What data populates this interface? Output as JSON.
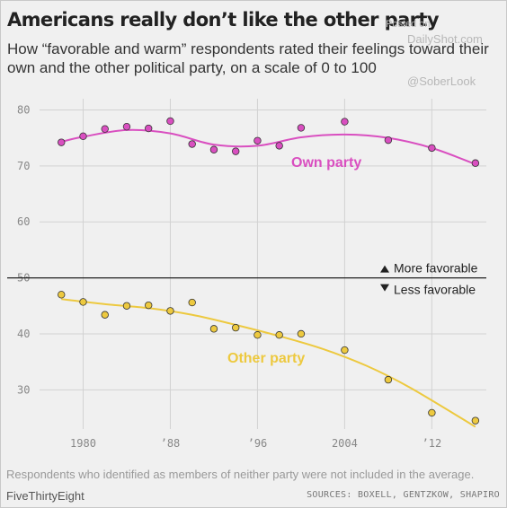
{
  "header": {
    "title": "Americans really don’t like the other party",
    "subtitle": "How “favorable and warm” respondents rated their feelings toward their own and the other political party, on a scale of 0 to 100"
  },
  "watermark": {
    "posted_on": "Posted on",
    "site": "DailyShot.com",
    "handle": "@SoberLook"
  },
  "footer": {
    "note": "Respondents who identified as members of neither party were not included in the average.",
    "brand": "FiveThirtyEight",
    "sources": "SOURCES: BOXELL, GENTZKOW, SHAPIRO"
  },
  "chart_data": {
    "type": "scatter",
    "xlim": [
      1976,
      2017
    ],
    "ylim": [
      23,
      82
    ],
    "x_ticks": [
      1980,
      1988,
      1996,
      2004,
      2012
    ],
    "x_tick_labels": [
      "1980",
      "’88",
      "’96",
      "2004",
      "’12"
    ],
    "y_ticks": [
      30,
      40,
      50,
      60,
      70,
      80
    ],
    "y_tick_labels": [
      "30",
      "40",
      "50",
      "60",
      "70",
      "80"
    ],
    "grid": true,
    "reference_line": {
      "y": 50,
      "above_label": "More favorable",
      "below_label": "Less favorable"
    },
    "series": [
      {
        "name": "Own party",
        "color": "#d94fc0",
        "x": [
          1978,
          1980,
          1982,
          1984,
          1986,
          1988,
          1990,
          1992,
          1994,
          1996,
          1998,
          2000,
          2004,
          2008,
          2012,
          2016
        ],
        "y": [
          74.2,
          75.3,
          76.6,
          77.0,
          76.7,
          78.0,
          73.9,
          72.9,
          72.6,
          74.5,
          73.6,
          76.8,
          77.9,
          74.6,
          73.2,
          70.5
        ],
        "trend": [
          [
            1978,
            74.3
          ],
          [
            1980,
            75.2
          ],
          [
            1984,
            76.4
          ],
          [
            1988,
            75.8
          ],
          [
            1992,
            73.8
          ],
          [
            1996,
            73.6
          ],
          [
            2000,
            75.1
          ],
          [
            2004,
            75.6
          ],
          [
            2008,
            75.0
          ],
          [
            2012,
            73.2
          ],
          [
            2016,
            70.3
          ]
        ]
      },
      {
        "name": "Other party",
        "color": "#edc93f",
        "x": [
          1978,
          1980,
          1982,
          1984,
          1986,
          1988,
          1990,
          1992,
          1994,
          1996,
          1998,
          2000,
          2004,
          2008,
          2012,
          2016
        ],
        "y": [
          47.0,
          45.7,
          43.4,
          45.0,
          45.1,
          44.1,
          45.6,
          40.9,
          41.1,
          39.8,
          39.8,
          40.0,
          37.1,
          31.8,
          25.9,
          24.5
        ],
        "trend": [
          [
            1978,
            46.2
          ],
          [
            1982,
            45.3
          ],
          [
            1986,
            44.6
          ],
          [
            1990,
            43.4
          ],
          [
            1994,
            41.6
          ],
          [
            1998,
            39.6
          ],
          [
            2002,
            37.3
          ],
          [
            2006,
            34.3
          ],
          [
            2010,
            30.4
          ],
          [
            2016,
            23.4
          ]
        ]
      }
    ]
  }
}
